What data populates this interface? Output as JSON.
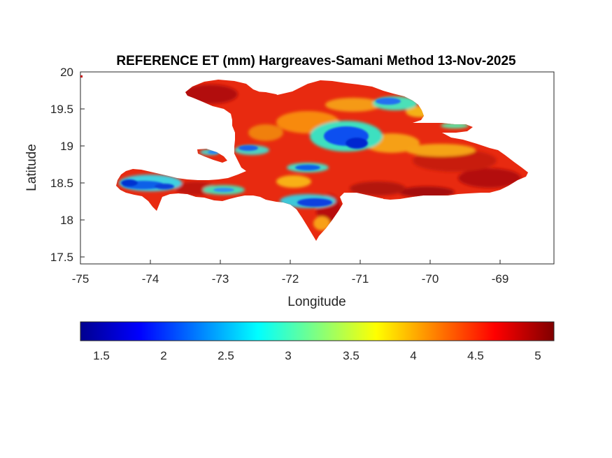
{
  "title": "REFERENCE ET (mm) Hargreaves-Samani Method  13-Nov-2025",
  "xlabel": "Longitude",
  "ylabel": "Latitude",
  "map": {
    "x_range": [
      -75,
      -68.22
    ],
    "y_range": [
      17.43,
      20
    ],
    "x_ticks": [
      "-75",
      "-74",
      "-73",
      "-72",
      "-71",
      "-70",
      "-69"
    ],
    "y_ticks": [
      "20",
      "19.5",
      "19",
      "18.5",
      "18",
      "17.5"
    ],
    "region": "Hispaniola (Haiti and Dominican Republic)"
  },
  "colorbar": {
    "colormap": "jet",
    "range": [
      1.33,
      5.13
    ],
    "tick_labels": [
      "1.5",
      "2",
      "2.5",
      "3",
      "3.5",
      "4",
      "4.5",
      "5"
    ],
    "colors": [
      "#00008f",
      "#0000ff",
      "#0080ff",
      "#00ffff",
      "#80ff80",
      "#ffff00",
      "#ff8000",
      "#ff0000",
      "#800000"
    ]
  }
}
